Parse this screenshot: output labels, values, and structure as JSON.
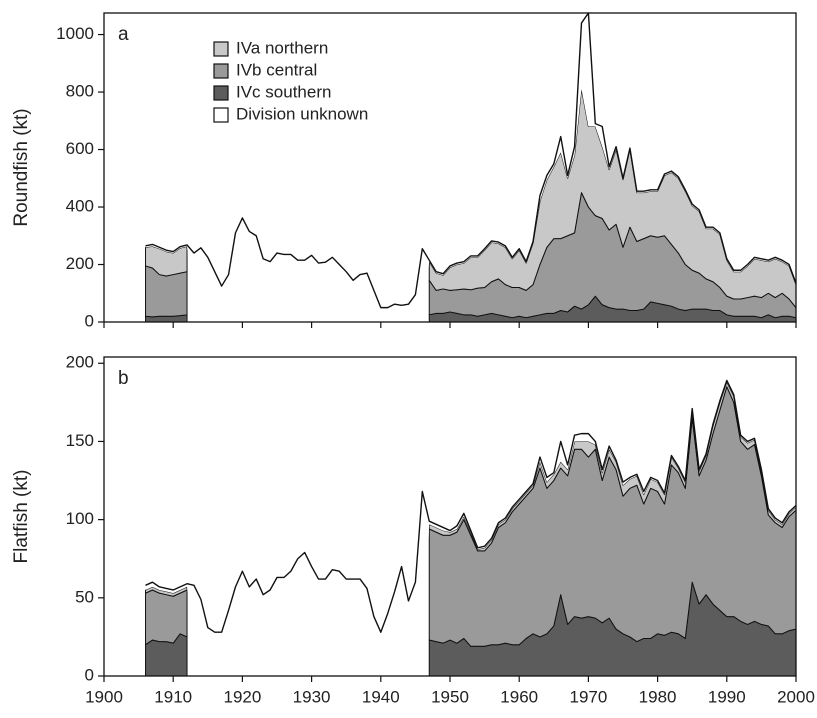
{
  "chart_data": [
    {
      "type": "area",
      "label": "a",
      "y_label": "Roundfish (kt)",
      "stacked": true,
      "legend": "upper-left",
      "show_xtick_labels": false,
      "x": [
        1906,
        1907,
        1908,
        1909,
        1910,
        1911,
        1912,
        1913,
        1914,
        1915,
        1916,
        1917,
        1918,
        1919,
        1920,
        1921,
        1922,
        1923,
        1924,
        1925,
        1926,
        1927,
        1928,
        1929,
        1930,
        1931,
        1932,
        1933,
        1934,
        1935,
        1936,
        1937,
        1938,
        1939,
        1940,
        1941,
        1942,
        1943,
        1944,
        1945,
        1946,
        1947,
        1948,
        1949,
        1950,
        1951,
        1952,
        1953,
        1954,
        1955,
        1956,
        1957,
        1958,
        1959,
        1960,
        1961,
        1962,
        1963,
        1964,
        1965,
        1966,
        1967,
        1968,
        1969,
        1970,
        1971,
        1972,
        1973,
        1974,
        1975,
        1976,
        1977,
        1978,
        1979,
        1980,
        1981,
        1982,
        1983,
        1984,
        1985,
        1986,
        1987,
        1988,
        1989,
        1990,
        1991,
        1992,
        1993,
        1994,
        1995,
        1996,
        1997,
        1998,
        1999,
        2000
      ],
      "xlim": [
        1900,
        2000
      ],
      "xticks": [
        1900,
        1910,
        1920,
        1930,
        1940,
        1950,
        1960,
        1970,
        1980,
        1990,
        2000
      ],
      "ylim": [
        0,
        1075
      ],
      "yticks": [
        0,
        200,
        400,
        600,
        800,
        1000
      ],
      "series": [
        {
          "name": "IVa northern",
          "color": "#c8c8c8",
          "values": [
            65,
            75,
            90,
            85,
            75,
            87,
            88,
            null,
            null,
            null,
            null,
            null,
            null,
            null,
            null,
            null,
            null,
            null,
            null,
            null,
            null,
            null,
            null,
            null,
            null,
            null,
            null,
            null,
            null,
            null,
            null,
            null,
            null,
            null,
            null,
            null,
            null,
            null,
            null,
            null,
            null,
            65,
            60,
            48,
            80,
            88,
            90,
            113,
            107,
            130,
            137,
            123,
            130,
            100,
            130,
            95,
            145,
            220,
            235,
            250,
            300,
            200,
            270,
            360,
            280,
            310,
            250,
            210,
            260,
            235,
            270,
            170,
            160,
            155,
            160,
            210,
            250,
            260,
            255,
            225,
            215,
            175,
            185,
            185,
            125,
            95,
            95,
            110,
            130,
            130,
            110,
            135,
            110,
            115,
            80
          ]
        },
        {
          "name": "IVb central",
          "color": "#9a9a9a",
          "values": [
            175,
            170,
            145,
            140,
            145,
            148,
            150,
            null,
            null,
            null,
            null,
            null,
            null,
            null,
            null,
            null,
            null,
            null,
            null,
            null,
            null,
            null,
            null,
            null,
            null,
            null,
            null,
            null,
            null,
            null,
            null,
            null,
            null,
            null,
            null,
            null,
            null,
            null,
            null,
            null,
            null,
            120,
            80,
            85,
            75,
            82,
            90,
            87,
            98,
            95,
            110,
            125,
            110,
            105,
            100,
            95,
            110,
            175,
            230,
            260,
            250,
            265,
            255,
            405,
            340,
            280,
            300,
            270,
            295,
            215,
            290,
            240,
            245,
            230,
            230,
            240,
            215,
            195,
            160,
            135,
            125,
            105,
            100,
            80,
            65,
            60,
            60,
            65,
            70,
            70,
            75,
            70,
            80,
            60,
            35
          ]
        },
        {
          "name": "IVc southern",
          "color": "#5c5c5c",
          "values": [
            20,
            18,
            20,
            20,
            20,
            22,
            25,
            null,
            null,
            null,
            null,
            null,
            null,
            null,
            null,
            null,
            null,
            null,
            null,
            null,
            null,
            null,
            null,
            null,
            null,
            null,
            null,
            null,
            null,
            null,
            null,
            null,
            null,
            null,
            null,
            null,
            null,
            null,
            null,
            null,
            null,
            25,
            30,
            30,
            35,
            30,
            25,
            25,
            20,
            25,
            30,
            25,
            20,
            15,
            20,
            15,
            20,
            25,
            30,
            30,
            40,
            35,
            55,
            45,
            60,
            90,
            60,
            50,
            45,
            45,
            40,
            40,
            45,
            70,
            65,
            60,
            55,
            45,
            40,
            45,
            45,
            45,
            40,
            40,
            25,
            20,
            20,
            20,
            20,
            15,
            25,
            15,
            20,
            20,
            15
          ]
        },
        {
          "name": "Division unknown",
          "color": "#ffffff",
          "values": [
            5,
            7,
            5,
            5,
            5,
            5,
            5,
            240,
            258,
            225,
            175,
            125,
            165,
            310,
            362,
            315,
            300,
            220,
            210,
            240,
            235,
            235,
            215,
            215,
            232,
            205,
            208,
            225,
            200,
            175,
            145,
            165,
            170,
            110,
            50,
            50,
            62,
            58,
            62,
            95,
            255,
            5,
            5,
            5,
            5,
            5,
            5,
            5,
            5,
            5,
            5,
            5,
            5,
            5,
            5,
            5,
            5,
            20,
            15,
            10,
            55,
            10,
            30,
            230,
            395,
            10,
            70,
            10,
            10,
            5,
            5,
            5,
            5,
            5,
            5,
            5,
            5,
            5,
            5,
            5,
            5,
            5,
            5,
            5,
            5,
            5,
            5,
            5,
            5,
            5,
            5,
            5,
            5,
            5,
            5
          ]
        }
      ]
    },
    {
      "type": "area",
      "label": "b",
      "y_label": "Flatfish (kt)",
      "stacked": true,
      "show_xtick_labels": true,
      "x": [
        1906,
        1907,
        1908,
        1909,
        1910,
        1911,
        1912,
        1913,
        1914,
        1915,
        1916,
        1917,
        1918,
        1919,
        1920,
        1921,
        1922,
        1923,
        1924,
        1925,
        1926,
        1927,
        1928,
        1929,
        1930,
        1931,
        1932,
        1933,
        1934,
        1935,
        1936,
        1937,
        1938,
        1939,
        1940,
        1941,
        1942,
        1943,
        1944,
        1945,
        1946,
        1947,
        1948,
        1949,
        1950,
        1951,
        1952,
        1953,
        1954,
        1955,
        1956,
        1957,
        1958,
        1959,
        1960,
        1961,
        1962,
        1963,
        1964,
        1965,
        1966,
        1967,
        1968,
        1969,
        1970,
        1971,
        1972,
        1973,
        1974,
        1975,
        1976,
        1977,
        1978,
        1979,
        1980,
        1981,
        1982,
        1983,
        1984,
        1985,
        1986,
        1987,
        1988,
        1989,
        1990,
        1991,
        1992,
        1993,
        1994,
        1995,
        1996,
        1997,
        1998,
        1999,
        2000
      ],
      "xlim": [
        1900,
        2000
      ],
      "xticks": [
        1900,
        1910,
        1920,
        1930,
        1940,
        1950,
        1960,
        1970,
        1980,
        1990,
        2000
      ],
      "ylim": [
        0,
        204
      ],
      "yticks": [
        0,
        50,
        100,
        150,
        200
      ],
      "series": [
        {
          "color": "#c8c8c8",
          "values": [
            2,
            2,
            2,
            2,
            2,
            2,
            2,
            null,
            null,
            null,
            null,
            null,
            null,
            null,
            null,
            null,
            null,
            null,
            null,
            null,
            null,
            null,
            null,
            null,
            null,
            null,
            null,
            null,
            null,
            null,
            null,
            null,
            null,
            null,
            null,
            null,
            null,
            null,
            null,
            null,
            null,
            3,
            3,
            3,
            2,
            2,
            2,
            2,
            1,
            2,
            2,
            2,
            2,
            2,
            2,
            2,
            2,
            4,
            4,
            4,
            4,
            4,
            5,
            5,
            10,
            3,
            5,
            5,
            5,
            7,
            6,
            6,
            6,
            6,
            6,
            6,
            5,
            3,
            4,
            4,
            3,
            3,
            5,
            5,
            3,
            4,
            3,
            4,
            3,
            3,
            3,
            2,
            2,
            2,
            2
          ]
        },
        {
          "color": "#9a9a9a",
          "values": [
            33,
            32,
            31,
            30,
            30,
            26,
            30,
            null,
            null,
            null,
            null,
            null,
            null,
            null,
            null,
            null,
            null,
            null,
            null,
            null,
            null,
            null,
            null,
            null,
            null,
            null,
            null,
            null,
            null,
            null,
            null,
            null,
            null,
            null,
            null,
            null,
            null,
            null,
            null,
            null,
            null,
            71,
            70,
            69,
            67,
            71,
            76,
            71,
            61,
            61,
            65,
            75,
            77,
            85,
            90,
            91,
            93,
            108,
            93,
            93,
            81,
            95,
            107,
            108,
            102,
            108,
            91,
            103,
            102,
            88,
            95,
            100,
            86,
            96,
            91,
            84,
            107,
            103,
            96,
            105,
            82,
            86,
            109,
            128,
            147,
            137,
            115,
            112,
            113,
            95,
            71,
            71,
            68,
            73,
            76
          ]
        },
        {
          "color": "#5c5c5c",
          "values": [
            20,
            23,
            22,
            22,
            21,
            27,
            25,
            null,
            null,
            null,
            null,
            null,
            null,
            null,
            null,
            null,
            null,
            null,
            null,
            null,
            null,
            null,
            null,
            null,
            null,
            null,
            null,
            null,
            null,
            null,
            null,
            null,
            null,
            null,
            null,
            null,
            null,
            null,
            null,
            null,
            null,
            23,
            22,
            21,
            23,
            21,
            24,
            19,
            19,
            19,
            20,
            20,
            21,
            20,
            20,
            24,
            27,
            25,
            27,
            32,
            52,
            33,
            38,
            37,
            38,
            37,
            34,
            37,
            30,
            27,
            25,
            22,
            24,
            24,
            27,
            26,
            28,
            27,
            24,
            60,
            46,
            52,
            46,
            42,
            38,
            38,
            35,
            33,
            35,
            33,
            32,
            27,
            27,
            29,
            30
          ]
        },
        {
          "color": "#ffffff",
          "values": [
            3,
            3,
            2,
            2,
            2,
            2,
            2,
            58,
            49,
            31,
            28,
            28,
            42,
            57,
            67,
            57,
            62,
            52,
            55,
            63,
            63,
            67,
            75,
            79,
            70,
            62,
            62,
            68,
            67,
            62,
            62,
            62,
            56,
            38,
            28,
            40,
            54,
            70,
            48,
            60,
            118,
            2,
            2,
            2,
            1,
            2,
            2,
            1,
            1,
            1,
            1,
            1,
            1,
            1,
            1,
            1,
            1,
            3,
            3,
            1,
            13,
            3,
            4,
            5,
            5,
            2,
            2,
            2,
            1,
            2,
            1,
            1,
            2,
            1,
            1,
            1,
            1,
            1,
            1,
            2,
            1,
            1,
            1,
            1,
            1,
            1,
            1,
            1,
            1,
            1,
            1,
            1,
            1,
            1,
            1
          ]
        }
      ]
    }
  ]
}
